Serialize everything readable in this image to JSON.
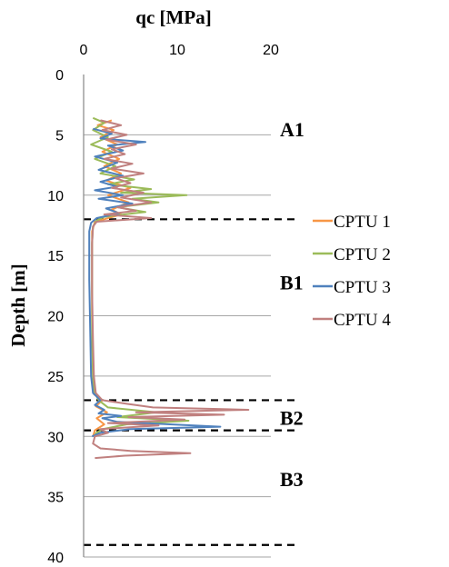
{
  "chart_data": {
    "type": "line",
    "title": "",
    "xlabel": "qc  [MPa]",
    "ylabel": "Depth [m]",
    "x_axis_position": "top",
    "y_axis_inverted": true,
    "xlim": [
      0,
      20
    ],
    "ylim": [
      0,
      40
    ],
    "x_ticks": [
      0,
      10,
      20
    ],
    "y_ticks": [
      0,
      5,
      10,
      15,
      20,
      25,
      30,
      35,
      40
    ],
    "grid": "horizontal",
    "legend_position": "right",
    "series": [
      {
        "name": "CPTU 1",
        "color": "#f79646",
        "points": [
          [
            3.0,
            3.8
          ],
          [
            1.5,
            4.2
          ],
          [
            3.2,
            4.6
          ],
          [
            1.8,
            5.2
          ],
          [
            3.6,
            5.8
          ],
          [
            2.0,
            6.4
          ],
          [
            3.8,
            7.0
          ],
          [
            2.2,
            7.6
          ],
          [
            4.0,
            8.2
          ],
          [
            2.4,
            8.8
          ],
          [
            5.0,
            9.4
          ],
          [
            2.6,
            10.0
          ],
          [
            4.8,
            10.6
          ],
          [
            3.0,
            11.2
          ],
          [
            4.0,
            11.6
          ],
          [
            2.2,
            12.0
          ],
          [
            1.2,
            12.2
          ],
          [
            0.9,
            13.0
          ],
          [
            0.9,
            15.0
          ],
          [
            0.9,
            20.0
          ],
          [
            1.0,
            25.0
          ],
          [
            1.1,
            26.5
          ],
          [
            2.0,
            27.0
          ],
          [
            1.3,
            27.5
          ],
          [
            2.5,
            28.0
          ],
          [
            1.4,
            28.5
          ],
          [
            2.2,
            29.0
          ],
          [
            1.2,
            29.5
          ],
          [
            1.0,
            30.0
          ]
        ]
      },
      {
        "name": "CPTU 2",
        "color": "#9bbb59",
        "points": [
          [
            1.0,
            3.6
          ],
          [
            2.2,
            4.0
          ],
          [
            1.0,
            4.6
          ],
          [
            2.6,
            5.2
          ],
          [
            0.8,
            5.8
          ],
          [
            3.0,
            6.4
          ],
          [
            1.2,
            7.0
          ],
          [
            3.4,
            7.6
          ],
          [
            1.8,
            8.2
          ],
          [
            5.4,
            8.7
          ],
          [
            2.6,
            9.1
          ],
          [
            7.2,
            9.5
          ],
          [
            4.0,
            9.8
          ],
          [
            11.0,
            10.0
          ],
          [
            5.2,
            10.3
          ],
          [
            8.0,
            10.6
          ],
          [
            3.6,
            11.0
          ],
          [
            6.6,
            11.4
          ],
          [
            2.2,
            11.8
          ],
          [
            1.4,
            12.1
          ],
          [
            1.0,
            12.6
          ],
          [
            0.9,
            14.0
          ],
          [
            0.9,
            18.0
          ],
          [
            0.9,
            22.0
          ],
          [
            1.0,
            25.0
          ],
          [
            1.2,
            26.4
          ],
          [
            1.6,
            27.0
          ],
          [
            2.6,
            27.6
          ],
          [
            7.8,
            28.0
          ],
          [
            3.6,
            28.4
          ],
          [
            11.2,
            28.7
          ],
          [
            4.6,
            29.0
          ],
          [
            2.0,
            29.4
          ],
          [
            1.2,
            29.8
          ]
        ]
      },
      {
        "name": "CPTU 3",
        "color": "#4f81bd",
        "points": [
          [
            1.0,
            4.5
          ],
          [
            3.0,
            4.9
          ],
          [
            1.8,
            5.3
          ],
          [
            6.6,
            5.6
          ],
          [
            2.6,
            5.9
          ],
          [
            4.2,
            6.3
          ],
          [
            1.2,
            6.8
          ],
          [
            3.6,
            7.3
          ],
          [
            1.6,
            7.9
          ],
          [
            4.2,
            8.4
          ],
          [
            1.8,
            8.9
          ],
          [
            3.6,
            9.3
          ],
          [
            1.2,
            9.6
          ],
          [
            4.2,
            10.0
          ],
          [
            1.6,
            10.3
          ],
          [
            5.2,
            10.7
          ],
          [
            2.4,
            11.1
          ],
          [
            3.8,
            11.5
          ],
          [
            1.4,
            11.9
          ],
          [
            0.8,
            12.3
          ],
          [
            0.6,
            13.0
          ],
          [
            0.6,
            17.0
          ],
          [
            0.7,
            21.0
          ],
          [
            0.8,
            25.0
          ],
          [
            1.0,
            26.4
          ],
          [
            1.8,
            27.0
          ],
          [
            1.2,
            27.4
          ],
          [
            2.2,
            27.8
          ],
          [
            1.6,
            28.1
          ],
          [
            4.0,
            28.3
          ],
          [
            2.0,
            28.5
          ],
          [
            3.6,
            28.8
          ],
          [
            14.6,
            29.2
          ],
          [
            5.0,
            29.4
          ],
          [
            1.8,
            29.7
          ],
          [
            0.9,
            30.0
          ]
        ]
      },
      {
        "name": "CPTU 4",
        "color": "#c0807f",
        "points": [
          [
            1.8,
            3.8
          ],
          [
            4.0,
            4.2
          ],
          [
            2.0,
            4.6
          ],
          [
            4.6,
            5.0
          ],
          [
            2.4,
            5.4
          ],
          [
            5.6,
            5.8
          ],
          [
            3.0,
            6.2
          ],
          [
            4.4,
            6.6
          ],
          [
            2.2,
            7.0
          ],
          [
            5.2,
            7.4
          ],
          [
            3.0,
            7.8
          ],
          [
            6.4,
            8.2
          ],
          [
            3.4,
            8.6
          ],
          [
            5.0,
            9.0
          ],
          [
            3.0,
            9.4
          ],
          [
            6.4,
            9.8
          ],
          [
            4.0,
            10.2
          ],
          [
            7.2,
            10.6
          ],
          [
            3.6,
            11.0
          ],
          [
            5.6,
            11.3
          ],
          [
            2.2,
            11.6
          ],
          [
            7.2,
            11.9
          ],
          [
            1.4,
            12.2
          ],
          [
            1.0,
            12.6
          ],
          [
            0.9,
            14.0
          ],
          [
            0.9,
            18.0
          ],
          [
            1.0,
            22.0
          ],
          [
            1.1,
            25.0
          ],
          [
            1.3,
            26.4
          ],
          [
            2.0,
            27.0
          ],
          [
            4.6,
            27.3
          ],
          [
            7.4,
            27.6
          ],
          [
            17.6,
            27.8
          ],
          [
            5.6,
            28.0
          ],
          [
            15.0,
            28.2
          ],
          [
            4.8,
            28.4
          ],
          [
            10.8,
            28.6
          ],
          [
            2.6,
            28.9
          ],
          [
            8.0,
            29.1
          ],
          [
            1.8,
            29.4
          ],
          [
            2.6,
            29.7
          ],
          [
            1.2,
            30.0
          ],
          [
            1.0,
            30.6
          ],
          [
            1.8,
            31.0
          ],
          [
            5.0,
            31.2
          ],
          [
            11.4,
            31.4
          ],
          [
            4.4,
            31.6
          ],
          [
            1.2,
            31.8
          ]
        ]
      }
    ],
    "layer_boundaries": [
      12.0,
      27.0,
      29.5,
      39.0
    ],
    "layer_labels": [
      {
        "text": "A1",
        "depth": 4.6
      },
      {
        "text": "B1",
        "depth": 17.3
      },
      {
        "text": "B2",
        "depth": 28.5
      },
      {
        "text": "B3",
        "depth": 33.6
      }
    ]
  }
}
